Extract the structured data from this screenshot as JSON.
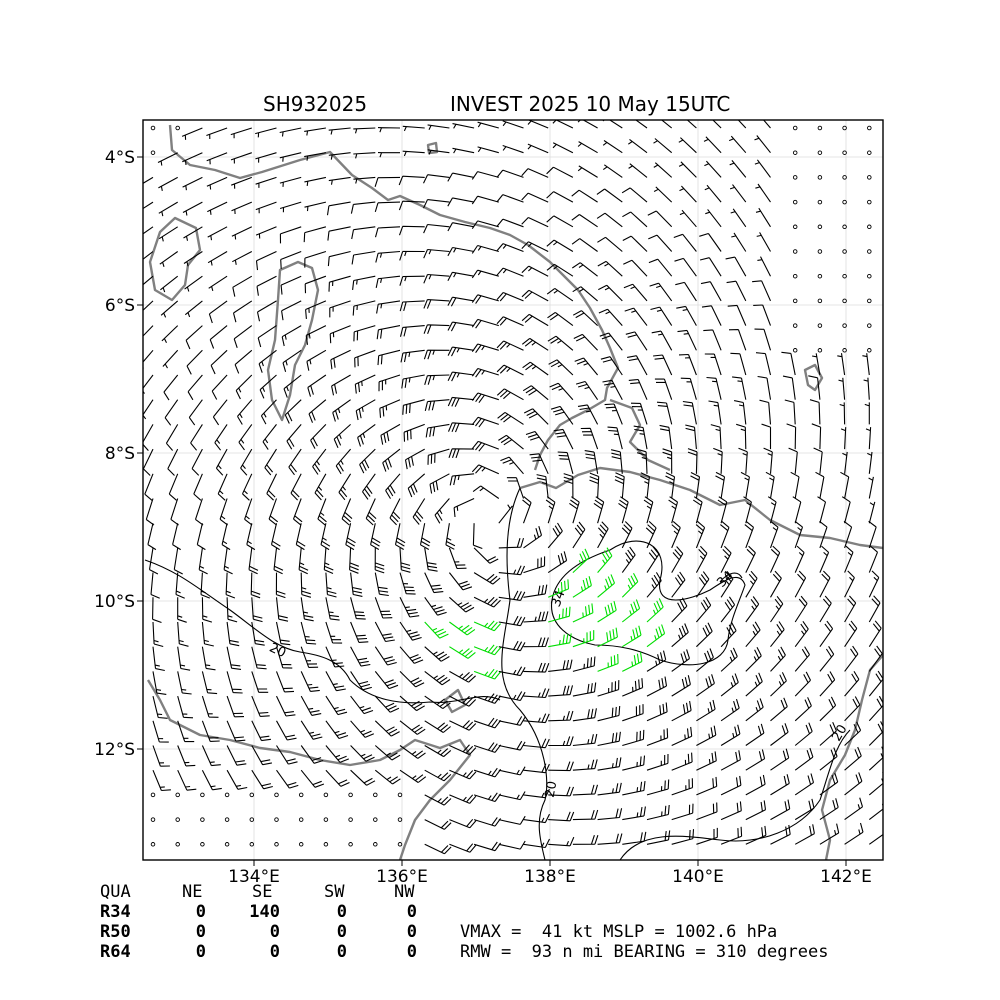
{
  "title": {
    "storm_id": "SH932025",
    "storm_name_time": "INVEST 2025 10 May 15UTC"
  },
  "axes": {
    "lon_min": 132.5,
    "lon_max": 142.5,
    "lat_min": -13.5,
    "lat_max": -3.5,
    "lon_ticks": [
      {
        "value": 134,
        "label": "134°E"
      },
      {
        "value": 136,
        "label": "136°E"
      },
      {
        "value": 138,
        "label": "138°E"
      },
      {
        "value": 140,
        "label": "140°E"
      },
      {
        "value": 142,
        "label": "142°E"
      }
    ],
    "lat_ticks": [
      {
        "value": -4,
        "label": "4°S"
      },
      {
        "value": -6,
        "label": "6°S"
      },
      {
        "value": -8,
        "label": "8°S"
      },
      {
        "value": -10,
        "label": "10°S"
      },
      {
        "value": -12,
        "label": "12°S"
      }
    ],
    "grid": true
  },
  "storm_center": {
    "lon": 137.2,
    "lat": -8.9
  },
  "contours": [
    {
      "label": "34",
      "color": "#000000"
    },
    {
      "label": "34",
      "color": "#000000"
    },
    {
      "label": "20",
      "color": "#000000"
    },
    {
      "label": "20",
      "color": "#000000"
    },
    {
      "label": "20",
      "color": "#000000"
    }
  ],
  "wind_colors": {
    "below_34kt": "#000000",
    "34_to_50kt": "#00dd00",
    "50_to_64kt": "#e6b000"
  },
  "coast_color": "#808080",
  "quadrant_table": {
    "header": [
      "QUA",
      "NE",
      "SE",
      "SW",
      "NW"
    ],
    "rows": [
      {
        "label": "R34",
        "values": [
          "0",
          "140",
          "0",
          "0"
        ]
      },
      {
        "label": "R50",
        "values": [
          "0",
          "0",
          "0",
          "0"
        ]
      },
      {
        "label": "R64",
        "values": [
          "0",
          "0",
          "0",
          "0"
        ]
      }
    ]
  },
  "info": {
    "line1": "VMAX =  41 kt MSLP = 1002.6 hPa",
    "line2": "RMW =  93 n mi BEARING = 310 degrees"
  }
}
